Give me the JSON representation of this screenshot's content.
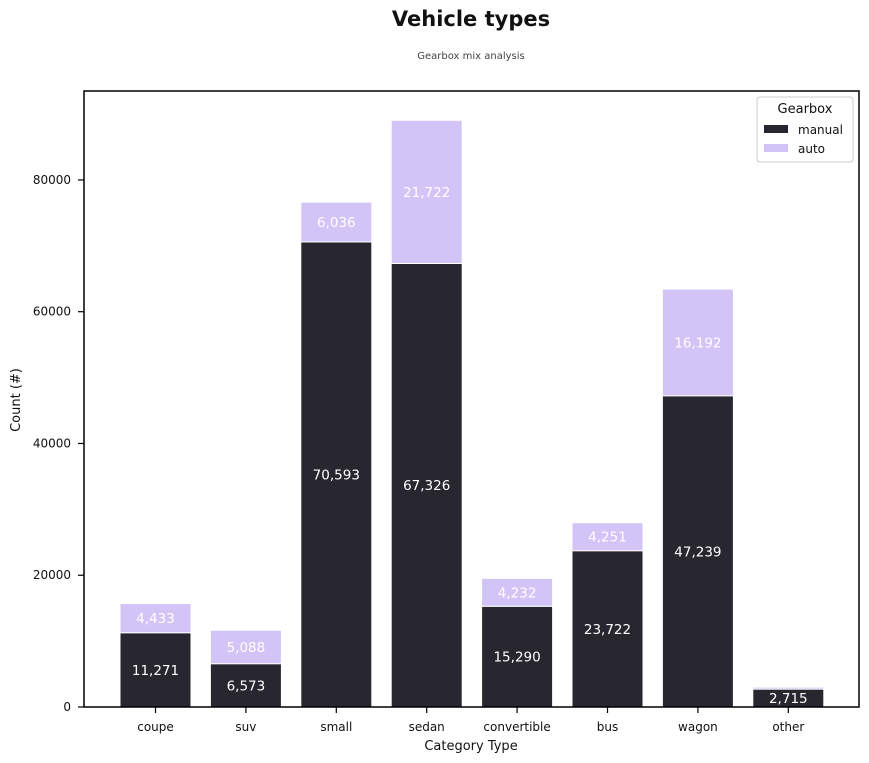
{
  "chart_data": {
    "type": "bar",
    "stacked": true,
    "title": "Vehicle types",
    "subtitle": "Gearbox mix analysis",
    "xlabel": "Category Type",
    "ylabel": "Count (#)",
    "ylim": [
      0,
      93500
    ],
    "yticks": [
      0,
      20000,
      40000,
      60000,
      80000
    ],
    "ytick_labels": [
      "0",
      "20000",
      "40000",
      "60000",
      "80000"
    ],
    "grid": false,
    "categories": [
      "coupe",
      "suv",
      "small",
      "sedan",
      "convertible",
      "bus",
      "wagon",
      "other"
    ],
    "series": [
      {
        "name": "manual",
        "color": "#28262f",
        "values": [
          11271,
          6573,
          70593,
          67326,
          15290,
          23722,
          47239,
          2715
        ],
        "labels": [
          "11,271",
          "6,573",
          "70,593",
          "67,326",
          "15,290",
          "23,722",
          "47,239",
          "2,715"
        ]
      },
      {
        "name": "auto",
        "color": "#d2c4f6",
        "values": [
          4433,
          5088,
          6036,
          21722,
          4232,
          4251,
          16192,
          300
        ],
        "labels": [
          "4,433",
          "5,088",
          "6,036",
          "21,722",
          "4,232",
          "4,251",
          "16,192",
          ""
        ]
      }
    ],
    "legend": {
      "title": "Gearbox",
      "placement": "top-right"
    }
  }
}
